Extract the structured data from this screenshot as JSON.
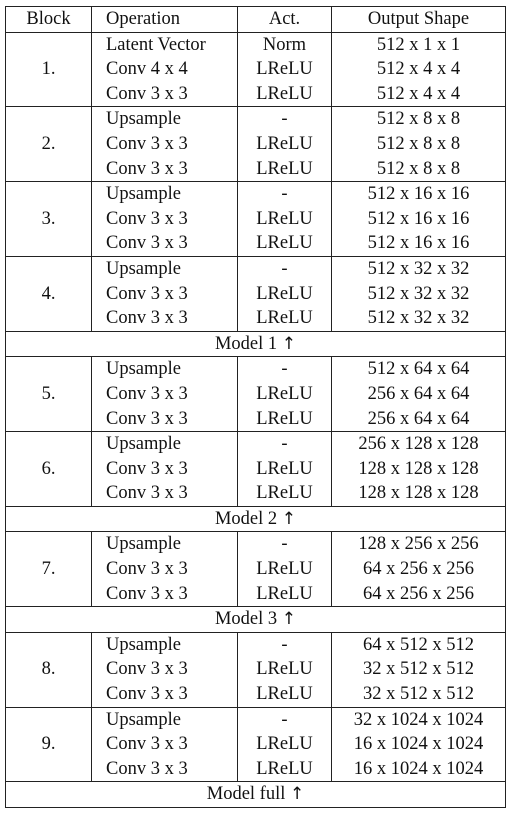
{
  "headers": [
    "Block",
    "Operation",
    "Act.",
    "Output Shape"
  ],
  "rows": [
    {
      "type": "block",
      "label": "1.",
      "ops": [
        "Latent Vector",
        "Conv 4 x 4",
        "Conv 3 x 3"
      ],
      "acts": [
        "Norm",
        "LReLU",
        "LReLU"
      ],
      "outs": [
        "512 x 1 x 1",
        "512 x 4 x 4",
        "512 x 4 x 4"
      ]
    },
    {
      "type": "block",
      "label": "2.",
      "ops": [
        "Upsample",
        "Conv 3 x 3",
        "Conv 3 x 3"
      ],
      "acts": [
        "-",
        "LReLU",
        "LReLU"
      ],
      "outs": [
        "512 x 8 x 8",
        "512 x 8 x 8",
        "512 x 8 x 8"
      ]
    },
    {
      "type": "block",
      "label": "3.",
      "ops": [
        "Upsample",
        "Conv 3 x 3",
        "Conv 3 x 3"
      ],
      "acts": [
        "-",
        "LReLU",
        "LReLU"
      ],
      "outs": [
        "512 x 16 x 16",
        "512 x 16 x 16",
        "512 x 16 x 16"
      ]
    },
    {
      "type": "block",
      "label": "4.",
      "ops": [
        "Upsample",
        "Conv 3 x 3",
        "Conv 3 x 3"
      ],
      "acts": [
        "-",
        "LReLU",
        "LReLU"
      ],
      "outs": [
        "512 x 32 x 32",
        "512 x 32 x 32",
        "512 x 32 x 32"
      ]
    },
    {
      "type": "model",
      "label": "Model 1",
      "arrow": "↑"
    },
    {
      "type": "block",
      "label": "5.",
      "ops": [
        "Upsample",
        "Conv 3 x 3",
        "Conv 3 x 3"
      ],
      "acts": [
        "-",
        "LReLU",
        "LReLU"
      ],
      "outs": [
        "512 x 64 x 64",
        "256 x 64 x 64",
        "256 x 64 x 64"
      ]
    },
    {
      "type": "block",
      "label": "6.",
      "ops": [
        "Upsample",
        "Conv 3 x 3",
        "Conv 3 x 3"
      ],
      "acts": [
        "-",
        "LReLU",
        "LReLU"
      ],
      "outs": [
        "256 x 128 x 128",
        "128 x 128 x 128",
        "128 x 128 x 128"
      ]
    },
    {
      "type": "model",
      "label": "Model 2",
      "arrow": "↑"
    },
    {
      "type": "block",
      "label": "7.",
      "ops": [
        "Upsample",
        "Conv 3 x 3",
        "Conv 3 x 3"
      ],
      "acts": [
        "-",
        "LReLU",
        "LReLU"
      ],
      "outs": [
        "128 x 256 x 256",
        "64 x 256 x 256",
        "64 x 256 x 256"
      ]
    },
    {
      "type": "model",
      "label": "Model 3",
      "arrow": "↑"
    },
    {
      "type": "block",
      "label": "8.",
      "ops": [
        "Upsample",
        "Conv 3 x 3",
        "Conv 3 x 3"
      ],
      "acts": [
        "-",
        "LReLU",
        "LReLU"
      ],
      "outs": [
        "64 x 512 x 512",
        "32 x 512 x 512",
        "32 x 512 x 512"
      ]
    },
    {
      "type": "block",
      "label": "9.",
      "ops": [
        "Upsample",
        "Conv 3 x 3",
        "Conv 3 x 3"
      ],
      "acts": [
        "-",
        "LReLU",
        "LReLU"
      ],
      "outs": [
        "32 x 1024 x 1024",
        "16 x 1024 x 1024",
        "16 x 1024 x 1024"
      ]
    },
    {
      "type": "model",
      "label": "Model full",
      "arrow": "↑"
    }
  ]
}
